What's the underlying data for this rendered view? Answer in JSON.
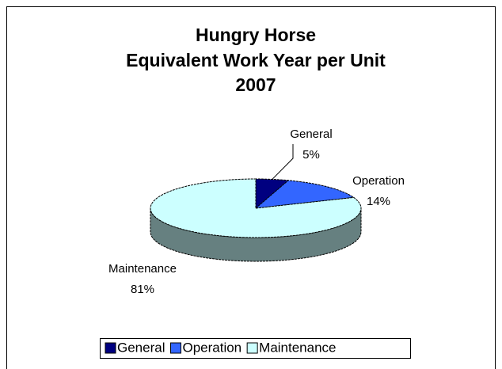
{
  "chart_data": {
    "type": "pie",
    "title": [
      "Hungry Horse",
      "Equivalent Work Year per Unit",
      "2007"
    ],
    "categories": [
      "General",
      "Operation",
      "Maintenance"
    ],
    "values": [
      5,
      14,
      81
    ],
    "value_labels": [
      "5%",
      "14%",
      "81%"
    ],
    "colors": [
      "#000080",
      "#3366ff",
      "#ccffff"
    ],
    "legend": "bottom"
  }
}
